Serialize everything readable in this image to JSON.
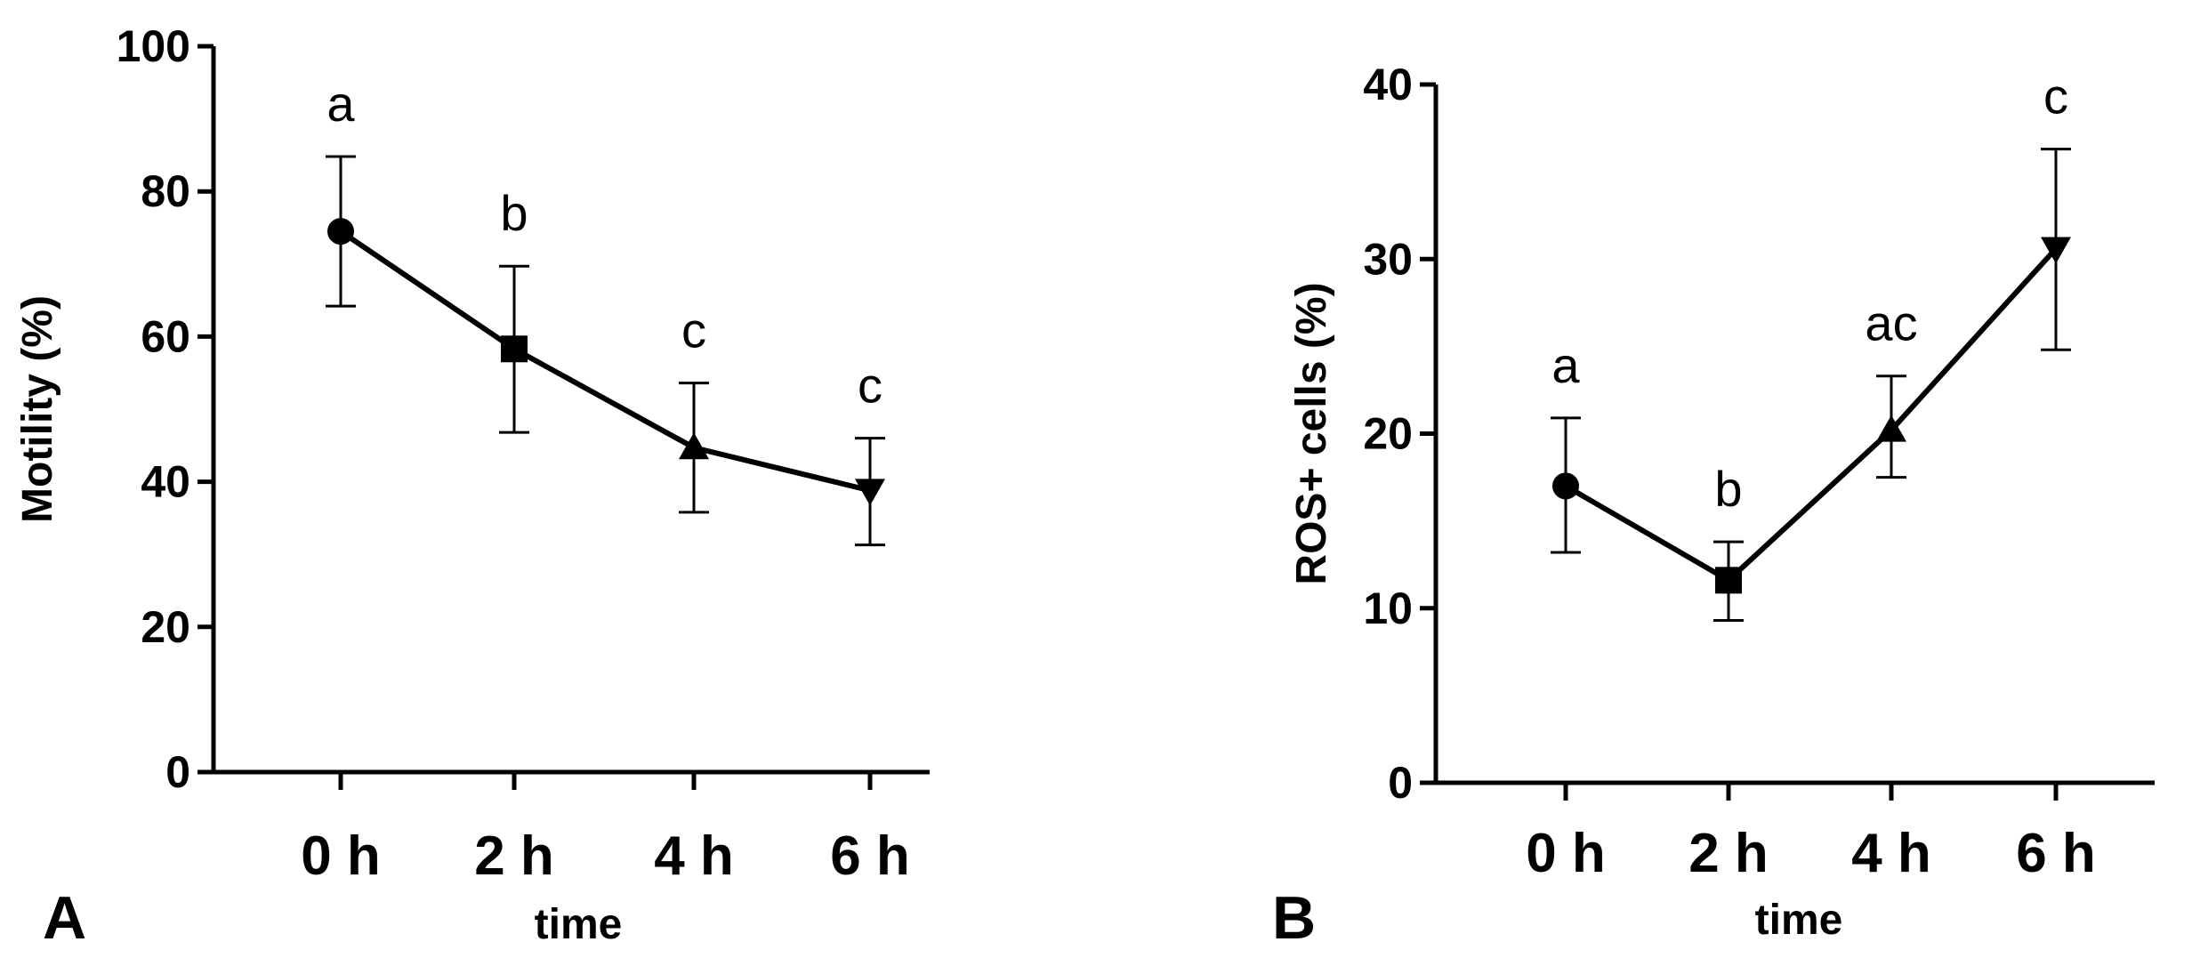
{
  "chart_data": [
    {
      "type": "line",
      "panel_label": "A",
      "xlabel": "time",
      "ylabel": "Motility (%)",
      "categories": [
        "0 h",
        "2 h",
        "4 h",
        "6 h"
      ],
      "ylim": [
        0,
        100
      ],
      "yticks": [
        "0",
        "20",
        "40",
        "60",
        "80",
        "100"
      ],
      "grid": false,
      "series": [
        {
          "markers": [
            "circle",
            "square",
            "triangle-up",
            "triangle-down"
          ],
          "values": [
            74.5,
            58.3,
            44.7,
            38.8
          ],
          "error_low": [
            64.2,
            46.8,
            35.8,
            31.3
          ],
          "error_high": [
            84.8,
            69.7,
            53.6,
            46.0
          ],
          "annotations": [
            "a",
            "b",
            "c",
            "c"
          ]
        }
      ]
    },
    {
      "type": "line",
      "panel_label": "B",
      "xlabel": "time",
      "ylabel": "ROS+ cells (%)",
      "categories": [
        "0 h",
        "2 h",
        "4 h",
        "6 h"
      ],
      "ylim": [
        0,
        40
      ],
      "yticks": [
        "0",
        "10",
        "20",
        "30",
        "40"
      ],
      "grid": false,
      "series": [
        {
          "markers": [
            "circle",
            "square",
            "triangle-up",
            "triangle-down"
          ],
          "values": [
            17.0,
            11.6,
            20.2,
            30.6
          ],
          "error_low": [
            13.2,
            9.3,
            17.5,
            24.8
          ],
          "error_high": [
            20.9,
            13.8,
            23.3,
            36.3
          ],
          "annotations": [
            "a",
            "b",
            "ac",
            "c"
          ]
        }
      ]
    }
  ],
  "colors": {
    "ink": "#000000",
    "background": "#ffffff"
  }
}
